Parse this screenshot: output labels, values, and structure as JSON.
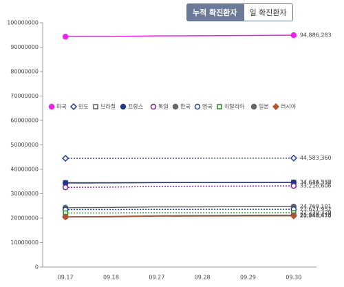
{
  "tabs": [
    "누적 확진환자",
    "일 확진환자"
  ],
  "chart_data": {
    "type": "line",
    "categories": [
      "09.17",
      "09.18",
      "09.27",
      "09.28",
      "09.29",
      "09.30"
    ],
    "ylim": [
      0,
      100000000
    ],
    "yticks": [
      0,
      10000000,
      20000000,
      30000000,
      40000000,
      50000000,
      60000000,
      70000000,
      80000000,
      90000000,
      100000000
    ],
    "grid": false,
    "legend": "middle",
    "series": [
      {
        "name": "미국",
        "color": "#ee22ee",
        "marker": "circle-filled",
        "dashed": false,
        "values": [
          94300000,
          94330000,
          94600000,
          94700000,
          94800000,
          94886283
        ],
        "value_labels": [
          null,
          null,
          null,
          null,
          null,
          "94,886,283"
        ]
      },
      {
        "name": "인도",
        "color": "#1f3b99",
        "marker": "diamond-open",
        "dashed": true,
        "values": [
          44500000,
          44510000,
          44550000,
          44560000,
          44570000,
          44583360
        ],
        "value_labels": [
          null,
          null,
          null,
          null,
          null,
          "44,583,360"
        ]
      },
      {
        "name": "브라질",
        "color": "#555555",
        "marker": "square-open",
        "dashed": false,
        "values": [
          34500000,
          34520000,
          34600000,
          34620000,
          34630000,
          34644577
        ],
        "value_labels": [
          null,
          null,
          null,
          null,
          null,
          "34,644,577"
        ]
      },
      {
        "name": "프랑스",
        "color": "#1f3a8a",
        "marker": "circle-filled",
        "dashed": false,
        "values": [
          34400000,
          34420000,
          34550000,
          34580000,
          34600000,
          34616358
        ],
        "value_labels": [
          null,
          null,
          null,
          null,
          null,
          "34,616,358"
        ]
      },
      {
        "name": "독일",
        "color": "#7a1fa2",
        "marker": "circle-open",
        "dashed": true,
        "values": [
          32600000,
          32700000,
          33000000,
          33100000,
          33150000,
          33216606
        ],
        "value_labels": [
          null,
          null,
          null,
          null,
          null,
          "33,216,606"
        ]
      },
      {
        "name": "한국",
        "color": "#666666",
        "marker": "circle-filled",
        "dashed": false,
        "values": [
          24300000,
          24400000,
          24600000,
          24650000,
          24720000,
          24769101
        ],
        "value_labels": [
          null,
          null,
          null,
          null,
          null,
          "24,769,101"
        ]
      },
      {
        "name": "영국",
        "color": "#1f3b99",
        "marker": "circle-open",
        "dashed": true,
        "values": [
          23500000,
          23520000,
          23600000,
          23610000,
          23620000,
          23621952
        ],
        "value_labels": [
          null,
          null,
          null,
          null,
          null,
          "23,621,952"
        ]
      },
      {
        "name": "이탈리아",
        "color": "#1e8a1e",
        "marker": "square-open",
        "dashed": true,
        "values": [
          22100000,
          22120000,
          22200000,
          22220000,
          22230000,
          22239329
        ],
        "value_labels": [
          null,
          null,
          null,
          null,
          null,
          "22,239,329"
        ]
      },
      {
        "name": "일본",
        "color": "#666666",
        "marker": "circle-filled",
        "dashed": false,
        "values": [
          20600000,
          20700000,
          21000000,
          21100000,
          21200000,
          21248418
        ],
        "value_labels": [
          null,
          null,
          null,
          null,
          null,
          "21,248,418"
        ]
      },
      {
        "name": "러시아",
        "color": "#b5532a",
        "marker": "diamond-filled",
        "dashed": false,
        "values": [
          20500000,
          20520000,
          20800000,
          20850000,
          20900000,
          20948470
        ],
        "value_labels": [
          null,
          null,
          null,
          null,
          null,
          "20,948,470"
        ]
      }
    ]
  }
}
